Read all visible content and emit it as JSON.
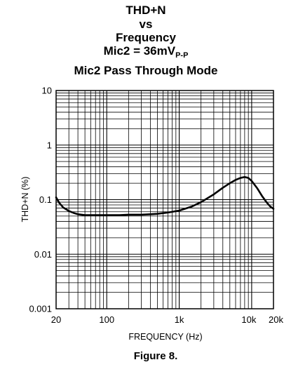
{
  "chart_data": {
    "type": "line",
    "title_lines": [
      "THD+N",
      "vs",
      "Frequency"
    ],
    "title_mic_prefix": "Mic2 = 36mV",
    "title_mic_subscript": "P-P",
    "title_last_line": "Mic2 Pass Through Mode",
    "xlabel": "FREQUENCY (Hz)",
    "ylabel": "THD+N (%)",
    "x_scale": "log",
    "y_scale": "log",
    "xlim": [
      20,
      20000
    ],
    "ylim": [
      0.001,
      10
    ],
    "grid": true,
    "x_ticks": [
      {
        "value": 20,
        "label": "20"
      },
      {
        "value": 100,
        "label": "100"
      },
      {
        "value": 1000,
        "label": "1k"
      },
      {
        "value": 10000,
        "label": "10k"
      },
      {
        "value": 20000,
        "label": "20k"
      }
    ],
    "y_ticks": [
      {
        "value": 10,
        "label": "10"
      },
      {
        "value": 1,
        "label": "1"
      },
      {
        "value": 0.1,
        "label": "0.1"
      },
      {
        "value": 0.01,
        "label": "0.01"
      },
      {
        "value": 0.001,
        "label": "0.001"
      }
    ],
    "series": [
      {
        "x": [
          20,
          22,
          25,
          30,
          35,
          40,
          50,
          60,
          80,
          100,
          150,
          200,
          300,
          400,
          500,
          700,
          1000,
          1500,
          2000,
          3000,
          4000,
          5000,
          6000,
          7000,
          8000,
          9000,
          10000,
          12000,
          14000,
          16000,
          18000,
          20000
        ],
        "y": [
          0.11,
          0.088,
          0.072,
          0.062,
          0.057,
          0.054,
          0.052,
          0.052,
          0.052,
          0.052,
          0.052,
          0.053,
          0.053,
          0.054,
          0.055,
          0.058,
          0.063,
          0.075,
          0.09,
          0.125,
          0.165,
          0.2,
          0.23,
          0.25,
          0.26,
          0.25,
          0.22,
          0.16,
          0.115,
          0.09,
          0.075,
          0.068
        ]
      }
    ]
  },
  "caption": "Figure 8."
}
